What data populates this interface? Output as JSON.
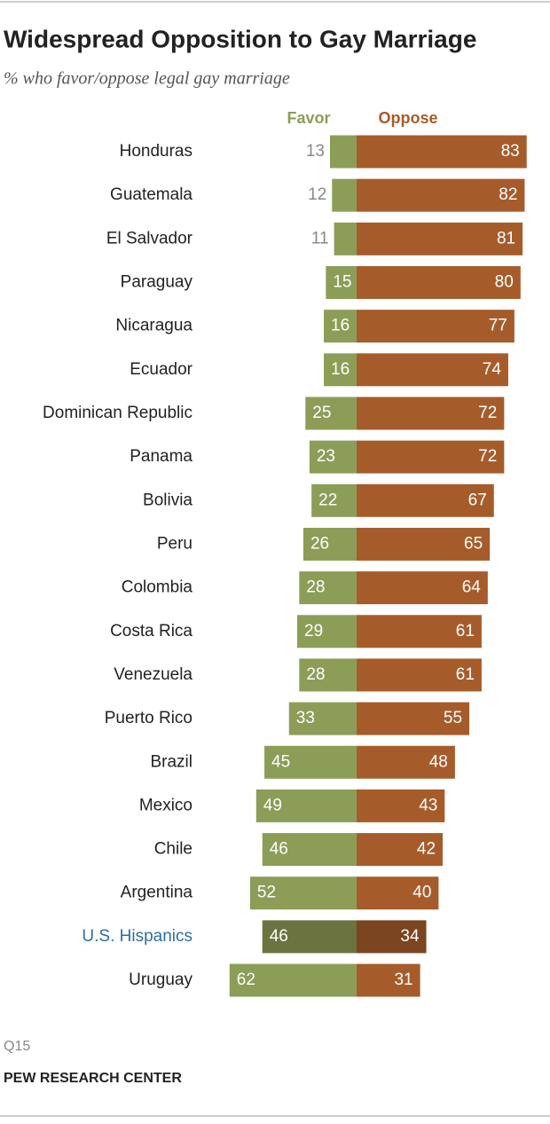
{
  "chart_data": {
    "type": "diverging-bar",
    "title": "Widespread Opposition to Gay Marriage",
    "subtitle": "% who favor/oppose legal gay marriage",
    "categories": [
      "Honduras",
      "Guatemala",
      "El Salvador",
      "Paraguay",
      "Nicaragua",
      "Ecuador",
      "Dominican Republic",
      "Panama",
      "Bolivia",
      "Peru",
      "Colombia",
      "Costa Rica",
      "Venezuela",
      "Puerto Rico",
      "Brazil",
      "Mexico",
      "Chile",
      "Argentina",
      "U.S. Hispanics",
      "Uruguay"
    ],
    "series": [
      {
        "name": "Favor",
        "color": "#8c9d57",
        "values": [
          13,
          12,
          11,
          15,
          16,
          16,
          25,
          23,
          22,
          26,
          28,
          29,
          28,
          33,
          45,
          49,
          46,
          52,
          46,
          62
        ]
      },
      {
        "name": "Oppose",
        "color": "#a65c2a",
        "values": [
          83,
          82,
          81,
          80,
          77,
          74,
          72,
          72,
          67,
          65,
          64,
          61,
          61,
          55,
          48,
          43,
          42,
          40,
          34,
          31
        ]
      }
    ],
    "highlight_index": 18,
    "highlight_colors": [
      "#6b7340",
      "#7a4520"
    ],
    "highlight_label_color": "#2f6f9f",
    "note": "Q15",
    "source": "PEW RESEARCH CENTER"
  }
}
